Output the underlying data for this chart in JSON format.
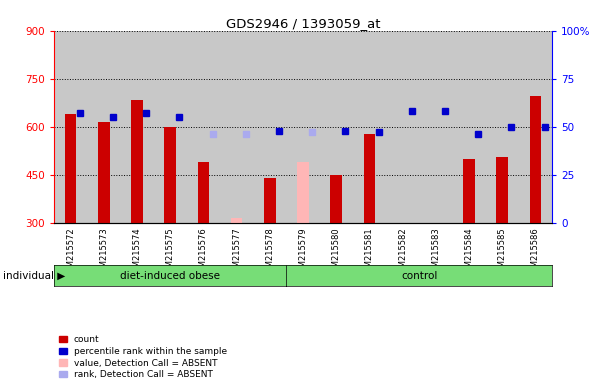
{
  "title": "GDS2946 / 1393059_at",
  "samples": [
    "GSM215572",
    "GSM215573",
    "GSM215574",
    "GSM215575",
    "GSM215576",
    "GSM215577",
    "GSM215578",
    "GSM215579",
    "GSM215580",
    "GSM215581",
    "GSM215582",
    "GSM215583",
    "GSM215584",
    "GSM215585",
    "GSM215586"
  ],
  "counts": [
    640,
    615,
    685,
    600,
    490,
    null,
    440,
    null,
    450,
    578,
    null,
    null,
    500,
    505,
    695
  ],
  "absent_counts": [
    null,
    null,
    null,
    null,
    null,
    315,
    null,
    490,
    null,
    null,
    null,
    null,
    null,
    null,
    null
  ],
  "ranks": [
    57,
    55,
    57,
    55,
    null,
    null,
    48,
    null,
    48,
    47,
    58,
    58,
    46,
    50,
    50
  ],
  "absent_ranks": [
    null,
    null,
    null,
    null,
    46,
    46,
    null,
    47,
    null,
    null,
    null,
    null,
    null,
    null,
    null
  ],
  "ylim_left": [
    300,
    900
  ],
  "ylim_right": [
    0,
    100
  ],
  "yticks_left": [
    300,
    450,
    600,
    750,
    900
  ],
  "yticks_right": [
    0,
    25,
    50,
    75,
    100
  ],
  "group1_label": "diet-induced obese",
  "group2_label": "control",
  "group1_count": 7,
  "group2_count": 8,
  "individual_label": "individual",
  "bar_color_red": "#cc0000",
  "bar_color_blue": "#0000cc",
  "bar_color_pink": "#ffb6b6",
  "bar_color_lightblue": "#aaaaee",
  "group_bg": "#77dd77",
  "plot_bg": "#c8c8c8",
  "legend_items": [
    "count",
    "percentile rank within the sample",
    "value, Detection Call = ABSENT",
    "rank, Detection Call = ABSENT"
  ]
}
